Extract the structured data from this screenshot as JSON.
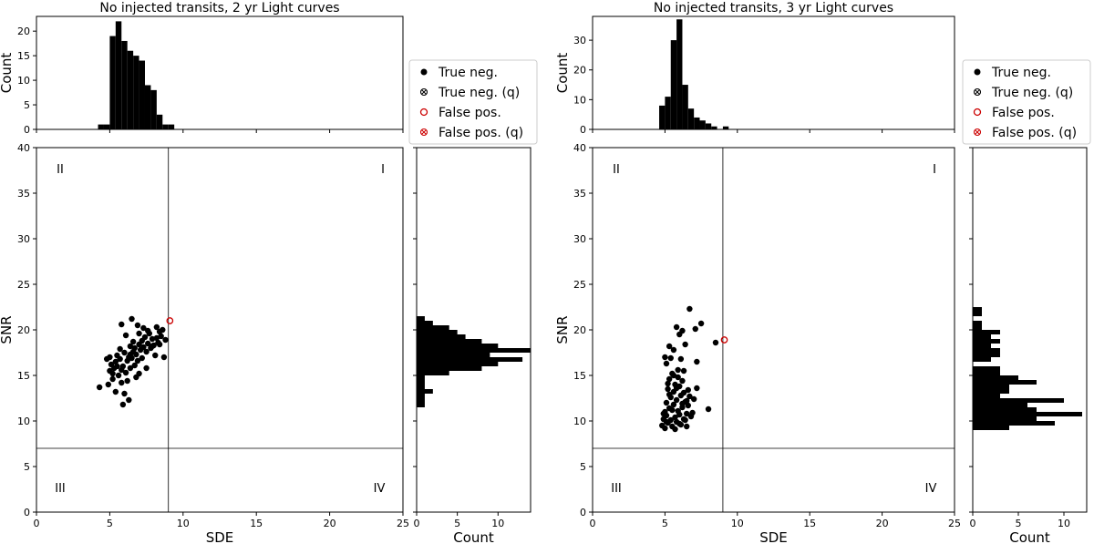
{
  "chart_data": [
    {
      "type": "scatter",
      "title": "No injected transits, 2 yr Light curves",
      "xlabel": "SDE",
      "ylabel": "SNR",
      "xlim": [
        0,
        25
      ],
      "ylim": [
        0,
        40
      ],
      "xticks": [
        0,
        5,
        10,
        15,
        20,
        25
      ],
      "yticks": [
        0,
        5,
        10,
        15,
        20,
        25,
        30,
        35,
        40
      ],
      "threshold_sde": 9,
      "threshold_snr": 7,
      "quadrant_labels": [
        "I",
        "II",
        "III",
        "IV"
      ],
      "series": [
        {
          "name": "True neg.",
          "marker": "filled-circle",
          "color": "#000000",
          "points": [
            [
              4.3,
              13.7
            ],
            [
              4.9,
              14.0
            ],
            [
              5.0,
              15.5
            ],
            [
              5.0,
              17.0
            ],
            [
              5.1,
              16.2
            ],
            [
              5.2,
              15.2
            ],
            [
              5.3,
              15.8
            ],
            [
              5.4,
              16.5
            ],
            [
              5.5,
              17.2
            ],
            [
              5.6,
              15.0
            ],
            [
              5.7,
              16.8
            ],
            [
              5.8,
              14.2
            ],
            [
              5.8,
              15.6
            ],
            [
              5.9,
              16.0
            ],
            [
              6.0,
              17.5
            ],
            [
              6.0,
              13.0
            ],
            [
              6.1,
              15.3
            ],
            [
              6.2,
              16.6
            ],
            [
              6.3,
              17.0
            ],
            [
              6.3,
              12.3
            ],
            [
              6.4,
              18.2
            ],
            [
              6.4,
              15.8
            ],
            [
              6.5,
              16.9
            ],
            [
              6.6,
              17.6
            ],
            [
              6.7,
              18.0
            ],
            [
              6.7,
              16.1
            ],
            [
              6.8,
              17.3
            ],
            [
              6.9,
              16.6
            ],
            [
              7.0,
              18.4
            ],
            [
              7.0,
              15.2
            ],
            [
              7.1,
              17.8
            ],
            [
              7.2,
              18.8
            ],
            [
              7.2,
              16.9
            ],
            [
              7.3,
              18.1
            ],
            [
              7.4,
              19.2
            ],
            [
              7.5,
              17.6
            ],
            [
              7.6,
              18.5
            ],
            [
              7.7,
              19.6
            ],
            [
              7.8,
              18.0
            ],
            [
              7.9,
              19.0
            ],
            [
              8.0,
              18.3
            ],
            [
              8.1,
              17.2
            ],
            [
              8.2,
              19.1
            ],
            [
              8.3,
              18.6
            ],
            [
              8.4,
              19.8
            ],
            [
              8.5,
              19.3
            ],
            [
              8.6,
              20.0
            ],
            [
              8.7,
              17.0
            ],
            [
              8.8,
              18.9
            ],
            [
              6.5,
              21.2
            ],
            [
              5.8,
              20.6
            ],
            [
              6.9,
              20.5
            ],
            [
              7.3,
              20.2
            ],
            [
              5.4,
              13.2
            ],
            [
              5.9,
              11.8
            ],
            [
              6.2,
              14.4
            ],
            [
              4.8,
              16.8
            ],
            [
              5.5,
              16.0
            ],
            [
              6.6,
              18.7
            ],
            [
              7.6,
              19.9
            ],
            [
              8.2,
              20.3
            ],
            [
              7.0,
              19.6
            ],
            [
              6.1,
              19.4
            ],
            [
              7.5,
              15.8
            ],
            [
              6.8,
              14.8
            ],
            [
              5.2,
              14.6
            ],
            [
              5.7,
              17.9
            ],
            [
              6.4,
              17.3
            ],
            [
              7.9,
              18.2
            ],
            [
              8.4,
              18.4
            ]
          ]
        },
        {
          "name": "True neg. (q)",
          "marker": "crossed-circle",
          "color": "#000000",
          "points": []
        },
        {
          "name": "False pos.",
          "marker": "open-circle",
          "color": "#cc0000",
          "points": [
            [
              9.1,
              21.0
            ]
          ]
        },
        {
          "name": "False pos. (q)",
          "marker": "crossed-circle",
          "color": "#cc0000",
          "points": []
        }
      ],
      "top_histogram": {
        "ylabel": "Count",
        "yticks": [
          0,
          5,
          10,
          15,
          20
        ],
        "ylim": [
          0,
          23
        ],
        "bin_edges": [
          4.2,
          4.6,
          5.0,
          5.4,
          5.8,
          6.2,
          6.6,
          7.0,
          7.4,
          7.8,
          8.2,
          8.6,
          9.0,
          9.4
        ],
        "counts": [
          1,
          1,
          19,
          22,
          18,
          16,
          15,
          14,
          9,
          8,
          3,
          1,
          1
        ]
      },
      "right_histogram": {
        "xlabel": "Count",
        "xticks": [
          0,
          5,
          10
        ],
        "xlim": [
          0,
          14
        ],
        "bin_edges": [
          11.5,
          12.0,
          12.5,
          13.0,
          13.5,
          14.0,
          14.5,
          15.0,
          15.5,
          16.0,
          16.5,
          17.0,
          17.5,
          18.0,
          18.5,
          19.0,
          19.5,
          20.0,
          20.5,
          21.0,
          21.5
        ],
        "counts": [
          1,
          1,
          1,
          2,
          1,
          1,
          1,
          4,
          8,
          10,
          13,
          9,
          14,
          10,
          8,
          6,
          5,
          4,
          2,
          1
        ]
      }
    },
    {
      "type": "scatter",
      "title": "No injected transits, 3 yr Light curves",
      "xlabel": "SDE",
      "ylabel": "SNR",
      "xlim": [
        0,
        25
      ],
      "ylim": [
        0,
        40
      ],
      "xticks": [
        0,
        5,
        10,
        15,
        20,
        25
      ],
      "yticks": [
        0,
        5,
        10,
        15,
        20,
        25,
        30,
        35,
        40
      ],
      "threshold_sde": 9,
      "threshold_snr": 7,
      "quadrant_labels": [
        "I",
        "II",
        "III",
        "IV"
      ],
      "series": [
        {
          "name": "True neg.",
          "marker": "filled-circle",
          "color": "#000000",
          "points": [
            [
              4.8,
              9.5
            ],
            [
              4.9,
              10.2
            ],
            [
              5.0,
              11.0
            ],
            [
              5.0,
              9.2
            ],
            [
              5.1,
              12.0
            ],
            [
              5.1,
              10.6
            ],
            [
              5.2,
              13.5
            ],
            [
              5.2,
              9.8
            ],
            [
              5.3,
              11.4
            ],
            [
              5.3,
              14.6
            ],
            [
              5.4,
              10.1
            ],
            [
              5.4,
              12.6
            ],
            [
              5.5,
              9.4
            ],
            [
              5.5,
              15.2
            ],
            [
              5.6,
              11.8
            ],
            [
              5.6,
              13.2
            ],
            [
              5.7,
              10.4
            ],
            [
              5.7,
              14.0
            ],
            [
              5.8,
              9.9
            ],
            [
              5.8,
              12.3
            ],
            [
              5.9,
              11.1
            ],
            [
              5.9,
              15.6
            ],
            [
              6.0,
              10.7
            ],
            [
              6.0,
              13.8
            ],
            [
              6.1,
              9.6
            ],
            [
              6.1,
              12.8
            ],
            [
              6.2,
              14.4
            ],
            [
              6.2,
              11.5
            ],
            [
              6.3,
              10.2
            ],
            [
              6.3,
              13.1
            ],
            [
              6.4,
              12.1
            ],
            [
              6.5,
              10.8
            ],
            [
              6.5,
              9.4
            ],
            [
              6.6,
              11.7
            ],
            [
              6.7,
              12.7
            ],
            [
              6.8,
              10.5
            ],
            [
              7.0,
              12.4
            ],
            [
              7.2,
              13.6
            ],
            [
              5.0,
              17.0
            ],
            [
              5.1,
              16.3
            ],
            [
              5.3,
              18.2
            ],
            [
              5.6,
              17.8
            ],
            [
              5.8,
              20.3
            ],
            [
              6.0,
              19.5
            ],
            [
              6.2,
              19.9
            ],
            [
              6.4,
              18.4
            ],
            [
              6.7,
              22.3
            ],
            [
              7.1,
              20.1
            ],
            [
              7.5,
              20.7
            ],
            [
              7.2,
              16.5
            ],
            [
              8.0,
              11.3
            ],
            [
              8.5,
              18.6
            ],
            [
              5.4,
              16.9
            ],
            [
              6.1,
              16.8
            ],
            [
              5.6,
              15.0
            ],
            [
              6.3,
              15.5
            ],
            [
              5.2,
              14.1
            ],
            [
              5.9,
              14.8
            ],
            [
              6.6,
              13.4
            ],
            [
              5.5,
              11.2
            ],
            [
              4.9,
              10.8
            ],
            [
              5.7,
              9.1
            ],
            [
              6.0,
              9.7
            ],
            [
              6.4,
              10.1
            ],
            [
              5.3,
              12.9
            ],
            [
              5.8,
              13.6
            ],
            [
              6.2,
              11.9
            ],
            [
              6.9,
              10.9
            ],
            [
              5.1,
              9.9
            ],
            [
              6.5,
              12.2
            ]
          ]
        },
        {
          "name": "True neg. (q)",
          "marker": "crossed-circle",
          "color": "#000000",
          "points": []
        },
        {
          "name": "False pos.",
          "marker": "open-circle",
          "color": "#cc0000",
          "points": [
            [
              9.1,
              18.9
            ]
          ]
        },
        {
          "name": "False pos. (q)",
          "marker": "crossed-circle",
          "color": "#cc0000",
          "points": []
        }
      ],
      "top_histogram": {
        "ylabel": "Count",
        "yticks": [
          0,
          10,
          20,
          30
        ],
        "ylim": [
          0,
          38
        ],
        "bin_edges": [
          4.6,
          5.0,
          5.4,
          5.8,
          6.2,
          6.6,
          7.0,
          7.4,
          7.8,
          8.2,
          8.6,
          9.0,
          9.4
        ],
        "counts": [
          8,
          11,
          30,
          37,
          15,
          7,
          4,
          3,
          2,
          1,
          0,
          1
        ]
      },
      "right_histogram": {
        "xlabel": "Count",
        "xticks": [
          0,
          5,
          10
        ],
        "xlim": [
          0,
          12.5
        ],
        "bin_edges": [
          9.0,
          9.5,
          10.0,
          10.5,
          11.0,
          11.5,
          12.0,
          12.5,
          13.0,
          13.5,
          14.0,
          14.5,
          15.0,
          15.5,
          16.0,
          16.5,
          17.0,
          17.5,
          18.0,
          18.5,
          19.0,
          19.5,
          20.0,
          20.5,
          21.0,
          21.5,
          22.0,
          22.5
        ],
        "counts": [
          4,
          9,
          7,
          12,
          7,
          6,
          10,
          3,
          4,
          4,
          7,
          5,
          3,
          3,
          0,
          2,
          3,
          3,
          2,
          3,
          2,
          3,
          1,
          1,
          0,
          1,
          1
        ]
      }
    }
  ]
}
